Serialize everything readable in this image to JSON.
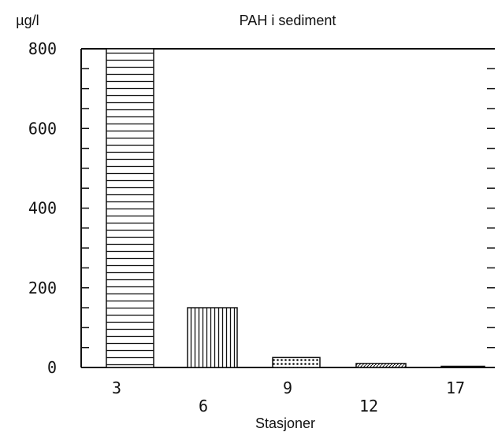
{
  "chart_data": {
    "type": "bar",
    "title": "PAH i sediment",
    "ylabel": "µg/l",
    "xlabel": "Stasjoner",
    "categories": [
      "3",
      "6",
      "9",
      "12",
      "17"
    ],
    "values": [
      800,
      150,
      25,
      10,
      2
    ],
    "ylim": [
      0,
      800
    ],
    "yticks": [
      0,
      200,
      400,
      600,
      800
    ],
    "ytick_labels": [
      "0",
      "200",
      "400",
      "600",
      "800"
    ],
    "bar_patterns": [
      "horizontal-lines",
      "vertical-lines",
      "dotted-grid",
      "diagonal-hatch",
      "diagonal-hatch"
    ],
    "grid": false,
    "legend": "none",
    "colors": {
      "ink": "#111111",
      "background": "#ffffff"
    }
  }
}
